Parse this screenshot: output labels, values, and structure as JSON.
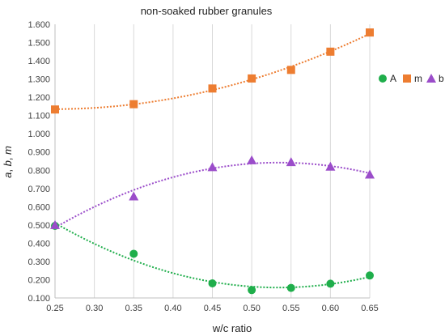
{
  "chart_data": {
    "type": "scatter",
    "title": "non-soaked rubber granules",
    "xlabel": "w/c ratio",
    "ylabel": "a, b, m",
    "xlim": [
      0.25,
      0.65
    ],
    "ylim": [
      0.1,
      1.6
    ],
    "xticks": [
      "0.25",
      "0.30",
      "0.35",
      "0.40",
      "0.45",
      "0.50",
      "0.55",
      "0.60",
      "0.65"
    ],
    "yticks": [
      "0.100",
      "0.200",
      "0.300",
      "0.400",
      "0.500",
      "0.600",
      "0.700",
      "0.800",
      "0.900",
      "1.000",
      "1.100",
      "1.200",
      "1.300",
      "1.400",
      "1.500",
      "1.600"
    ],
    "grid": "vertical",
    "legend_position": "right",
    "series": [
      {
        "name": "A",
        "marker": "circle",
        "color": "#1fae4b",
        "x": [
          0.25,
          0.35,
          0.45,
          0.5,
          0.55,
          0.6,
          0.65
        ],
        "y": [
          0.495,
          0.342,
          0.18,
          0.143,
          0.155,
          0.178,
          0.223
        ],
        "trendline": "polynomial"
      },
      {
        "name": "m",
        "marker": "square",
        "color": "#ed7d31",
        "x": [
          0.25,
          0.35,
          0.45,
          0.5,
          0.55,
          0.6,
          0.65
        ],
        "y": [
          1.133,
          1.162,
          1.248,
          1.303,
          1.35,
          1.45,
          1.555
        ],
        "trendline": "polynomial"
      },
      {
        "name": "b",
        "marker": "triangle",
        "color": "#9b4dca",
        "x": [
          0.25,
          0.35,
          0.45,
          0.5,
          0.55,
          0.6,
          0.65
        ],
        "y": [
          0.5,
          0.657,
          0.817,
          0.855,
          0.845,
          0.82,
          0.777
        ],
        "trendline": "polynomial"
      }
    ]
  }
}
